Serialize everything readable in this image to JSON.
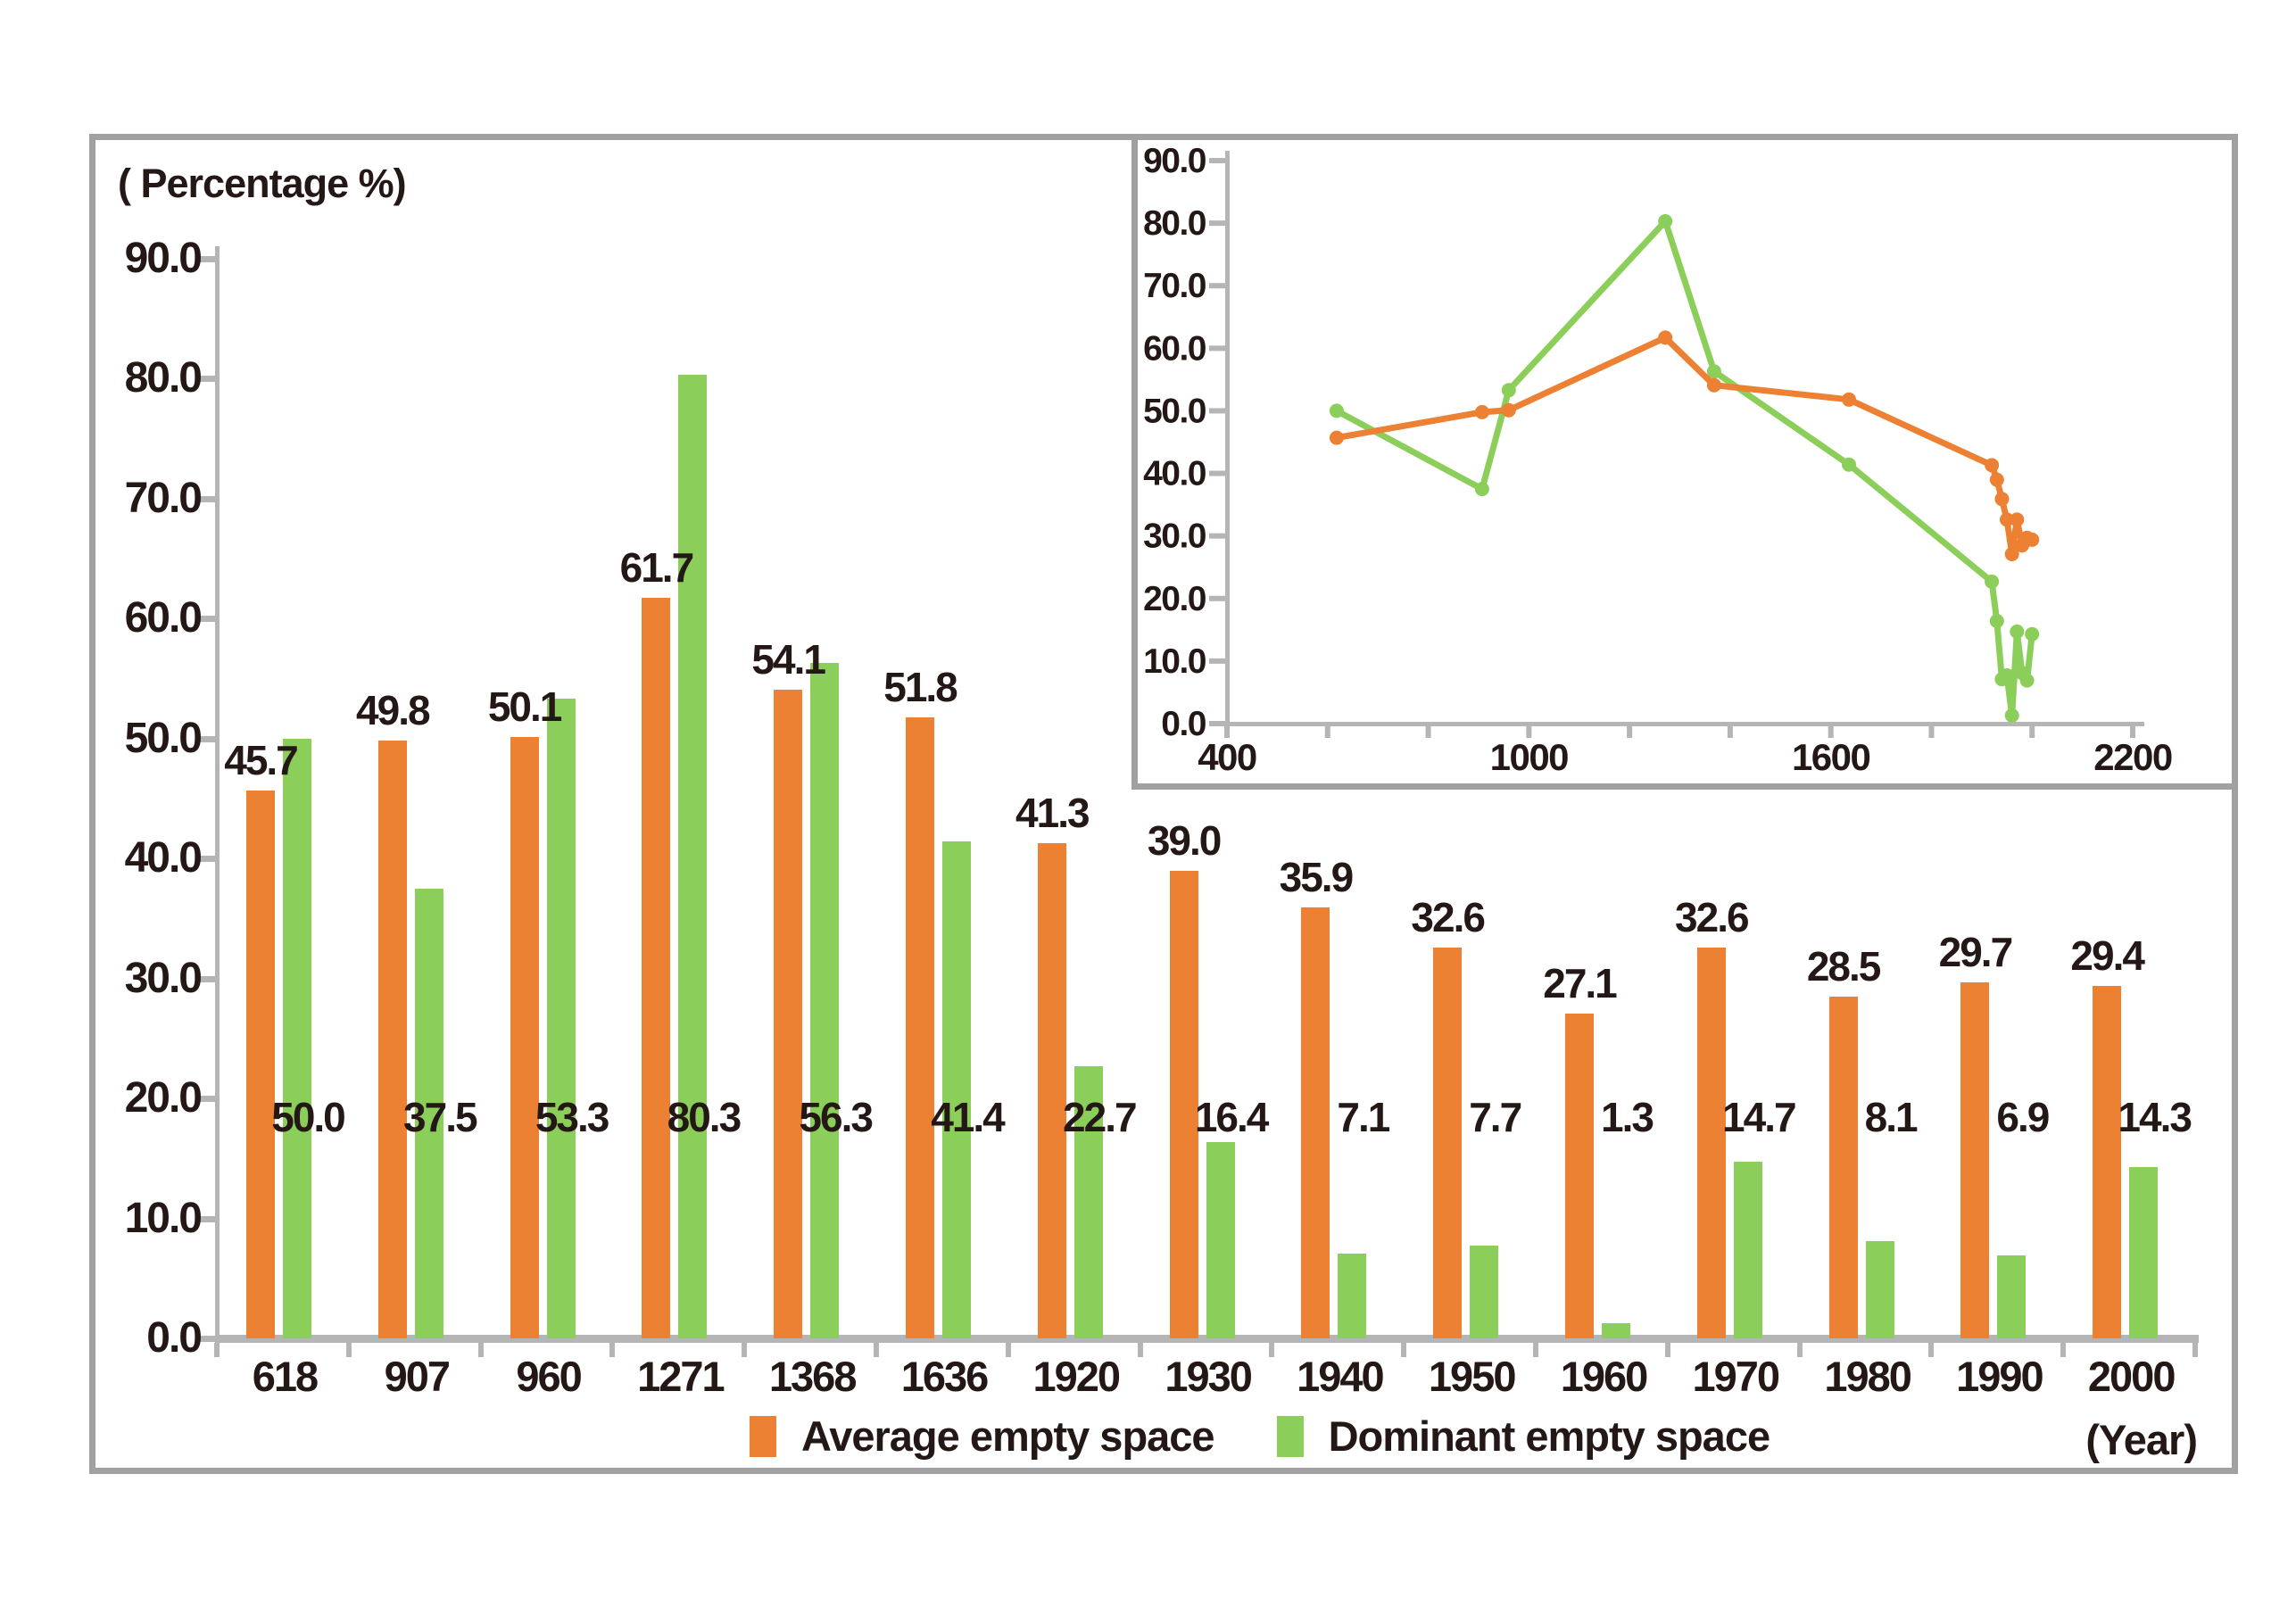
{
  "title": "( Percentage %)",
  "xaxis_unit_label": "(Year)",
  "legend": {
    "items": [
      {
        "label": "Average empty space",
        "color": "#EC8033"
      },
      {
        "label": "Dominant empty space",
        "color": "#8CCE5A"
      }
    ]
  },
  "colors": {
    "average_series": "#EC8033",
    "dominant_series": "#8CCE5A",
    "axis_gray": "#b5b5b6",
    "frame_gray": "#a1a1a2",
    "text": "#231815"
  },
  "chart_data": {
    "type": "bar",
    "title": "( Percentage %)",
    "xlabel": "(Year)",
    "ylabel": "Percentage %",
    "ylim": [
      0,
      90
    ],
    "ytick_step": 10,
    "ytick_labels": [
      "0.0",
      "10.0",
      "20.0",
      "30.0",
      "40.0",
      "50.0",
      "60.0",
      "70.0",
      "80.0",
      "90.0"
    ],
    "categories": [
      "618",
      "907",
      "960",
      "1271",
      "1368",
      "1636",
      "1920",
      "1930",
      "1940",
      "1950",
      "1960",
      "1970",
      "1980",
      "1990",
      "2000"
    ],
    "series": [
      {
        "name": "Average empty space",
        "color": "#EC8033",
        "values": [
          45.7,
          49.8,
          50.1,
          61.7,
          54.1,
          51.8,
          41.3,
          39.0,
          35.9,
          32.6,
          27.1,
          32.6,
          28.5,
          29.7,
          29.4
        ],
        "labels": [
          "45.7",
          "49.8",
          "50.1",
          "61.7",
          "54.1",
          "51.8",
          "41.3",
          "39.0",
          "35.9",
          "32.6",
          "27.1",
          "32.6",
          "28.5",
          "29.7",
          "29.4"
        ]
      },
      {
        "name": "Dominant empty space",
        "color": "#8CCE5A",
        "values": [
          50.0,
          37.5,
          53.3,
          80.3,
          56.3,
          41.4,
          22.7,
          16.4,
          7.1,
          7.7,
          1.3,
          14.7,
          8.1,
          6.9,
          14.3
        ],
        "labels": [
          "50.0",
          "37.5",
          "53.3",
          "80.3",
          "56.3",
          "41.4",
          "22.7",
          "16.4",
          "7.1",
          "7.7",
          "1.3",
          "14.7",
          "8.1",
          "6.9",
          "14.3"
        ]
      }
    ],
    "inset": {
      "type": "line",
      "x_years": [
        618,
        907,
        960,
        1271,
        1368,
        1636,
        1920,
        1930,
        1940,
        1950,
        1960,
        1970,
        1980,
        1990,
        2000
      ],
      "xlim": [
        400,
        2200
      ],
      "xtick_step": 200,
      "xtick_labels_shown": [
        "400",
        "1000",
        "1600",
        "2200"
      ],
      "ylim": [
        0,
        90
      ],
      "ytick_labels": [
        "0.0",
        "10.0",
        "20.0",
        "30.0",
        "40.0",
        "50.0",
        "60.0",
        "70.0",
        "80.0",
        "90.0"
      ],
      "legend_position": "none",
      "grid": false
    }
  }
}
